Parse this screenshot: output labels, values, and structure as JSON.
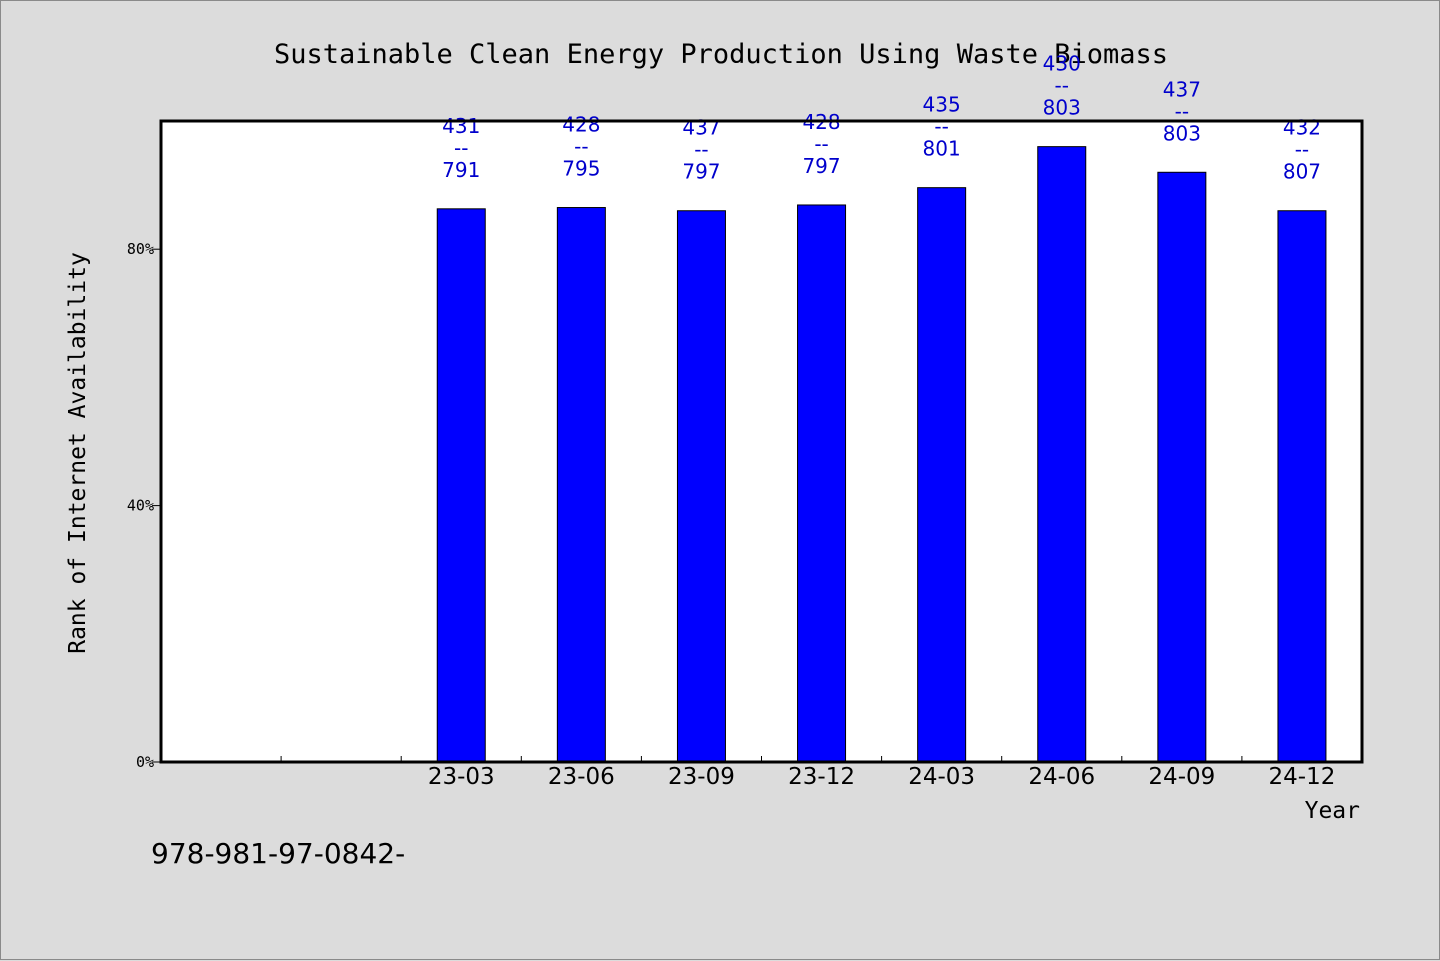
{
  "chart_data": {
    "type": "bar",
    "title": "Sustainable Clean Energy Production Using Waste Biomass",
    "xlabel": "Year",
    "ylabel": "Rank of Internet Availability",
    "categories": [
      "",
      "",
      "23-03",
      "23-06",
      "23-09",
      "23-12",
      "24-03",
      "24-06",
      "24-09",
      "24-12"
    ],
    "values": [
      null,
      null,
      86.3,
      86.5,
      86.0,
      86.9,
      89.6,
      96.0,
      92.0,
      86.0
    ],
    "data_labels": [
      null,
      null,
      [
        "431",
        "--",
        "791"
      ],
      [
        "428",
        "--",
        "795"
      ],
      [
        "437",
        "--",
        "797"
      ],
      [
        "428",
        "--",
        "797"
      ],
      [
        "435",
        "--",
        "801"
      ],
      [
        "430",
        "--",
        "803"
      ],
      [
        "437",
        "--",
        "803"
      ],
      [
        "432",
        "--",
        "807"
      ]
    ],
    "yticks": [
      0,
      40,
      80
    ],
    "ytick_labels": [
      "0%",
      "40%",
      "80%"
    ],
    "ylim": [
      0,
      100
    ],
    "grid": false,
    "bar_color": "#0000ff",
    "label_color": "#0000cc",
    "background": "#dcdcdc",
    "plot_background": "#ffffff"
  },
  "footer": {
    "text": "978-981-97-0842-"
  }
}
